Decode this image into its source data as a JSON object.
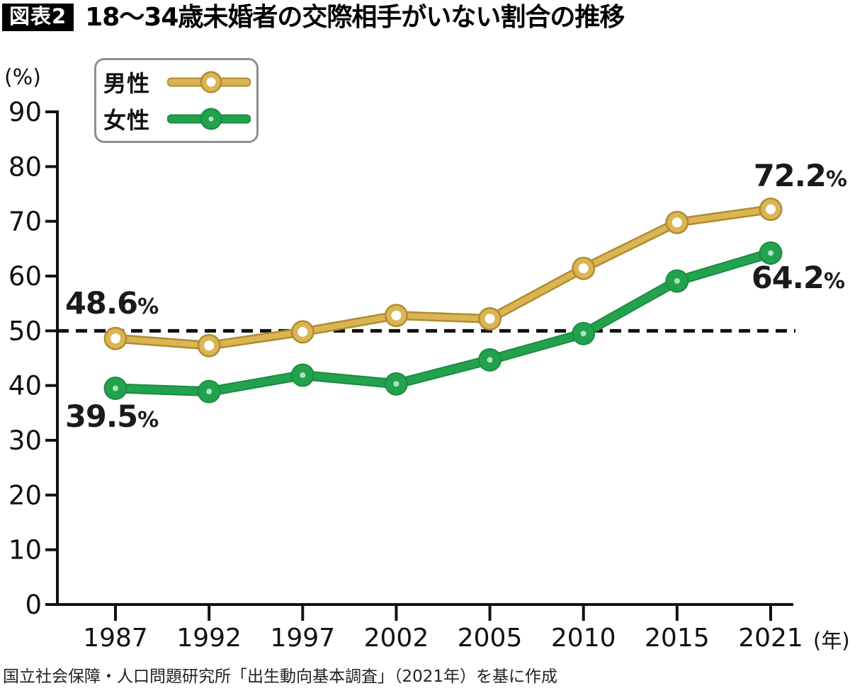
{
  "header": {
    "badge": "図表2",
    "title": "18〜34歳未婚者の交際相手がいない割合の推移"
  },
  "source": "国立社会保障・人口問題研究所「出生動向基本調査」（2021年）を基に作成",
  "chart_data": {
    "type": "line",
    "title": "18〜34歳未婚者の交際相手がいない割合の推移",
    "unit_y": "(%)",
    "unit_x": "(年)",
    "categories": [
      "1987",
      "1992",
      "1997",
      "2002",
      "2005",
      "2010",
      "2015",
      "2021"
    ],
    "y_ticks": [
      0,
      10,
      20,
      30,
      40,
      50,
      60,
      70,
      80,
      90
    ],
    "ylim": [
      0,
      90
    ],
    "grid": "off",
    "legend_position": "top-left",
    "reference_line": {
      "value": 50,
      "style": "dashed",
      "color": "#111111"
    },
    "series": [
      {
        "name": "男性",
        "color": "#DBB454",
        "outline": "#B08C2F",
        "marker": "hollow",
        "marker_center": "#FFFFFF",
        "values": [
          48.6,
          47.3,
          49.8,
          52.8,
          52.2,
          61.4,
          69.8,
          72.2
        ]
      },
      {
        "name": "女性",
        "color": "#23A24E",
        "outline": "#1B8A43",
        "marker": "dot",
        "marker_center": "#A9E4BE",
        "values": [
          39.5,
          38.9,
          41.9,
          40.3,
          44.7,
          49.5,
          59.1,
          64.2
        ]
      }
    ],
    "annotations": [
      {
        "series": "男性",
        "year": "1987",
        "text": "48.6",
        "suffix": "%"
      },
      {
        "series": "女性",
        "year": "1987",
        "text": "39.5",
        "suffix": "%"
      },
      {
        "series": "男性",
        "year": "2021",
        "text": "72.2",
        "suffix": "%"
      },
      {
        "series": "女性",
        "year": "2021",
        "text": "64.2",
        "suffix": "%"
      }
    ]
  }
}
